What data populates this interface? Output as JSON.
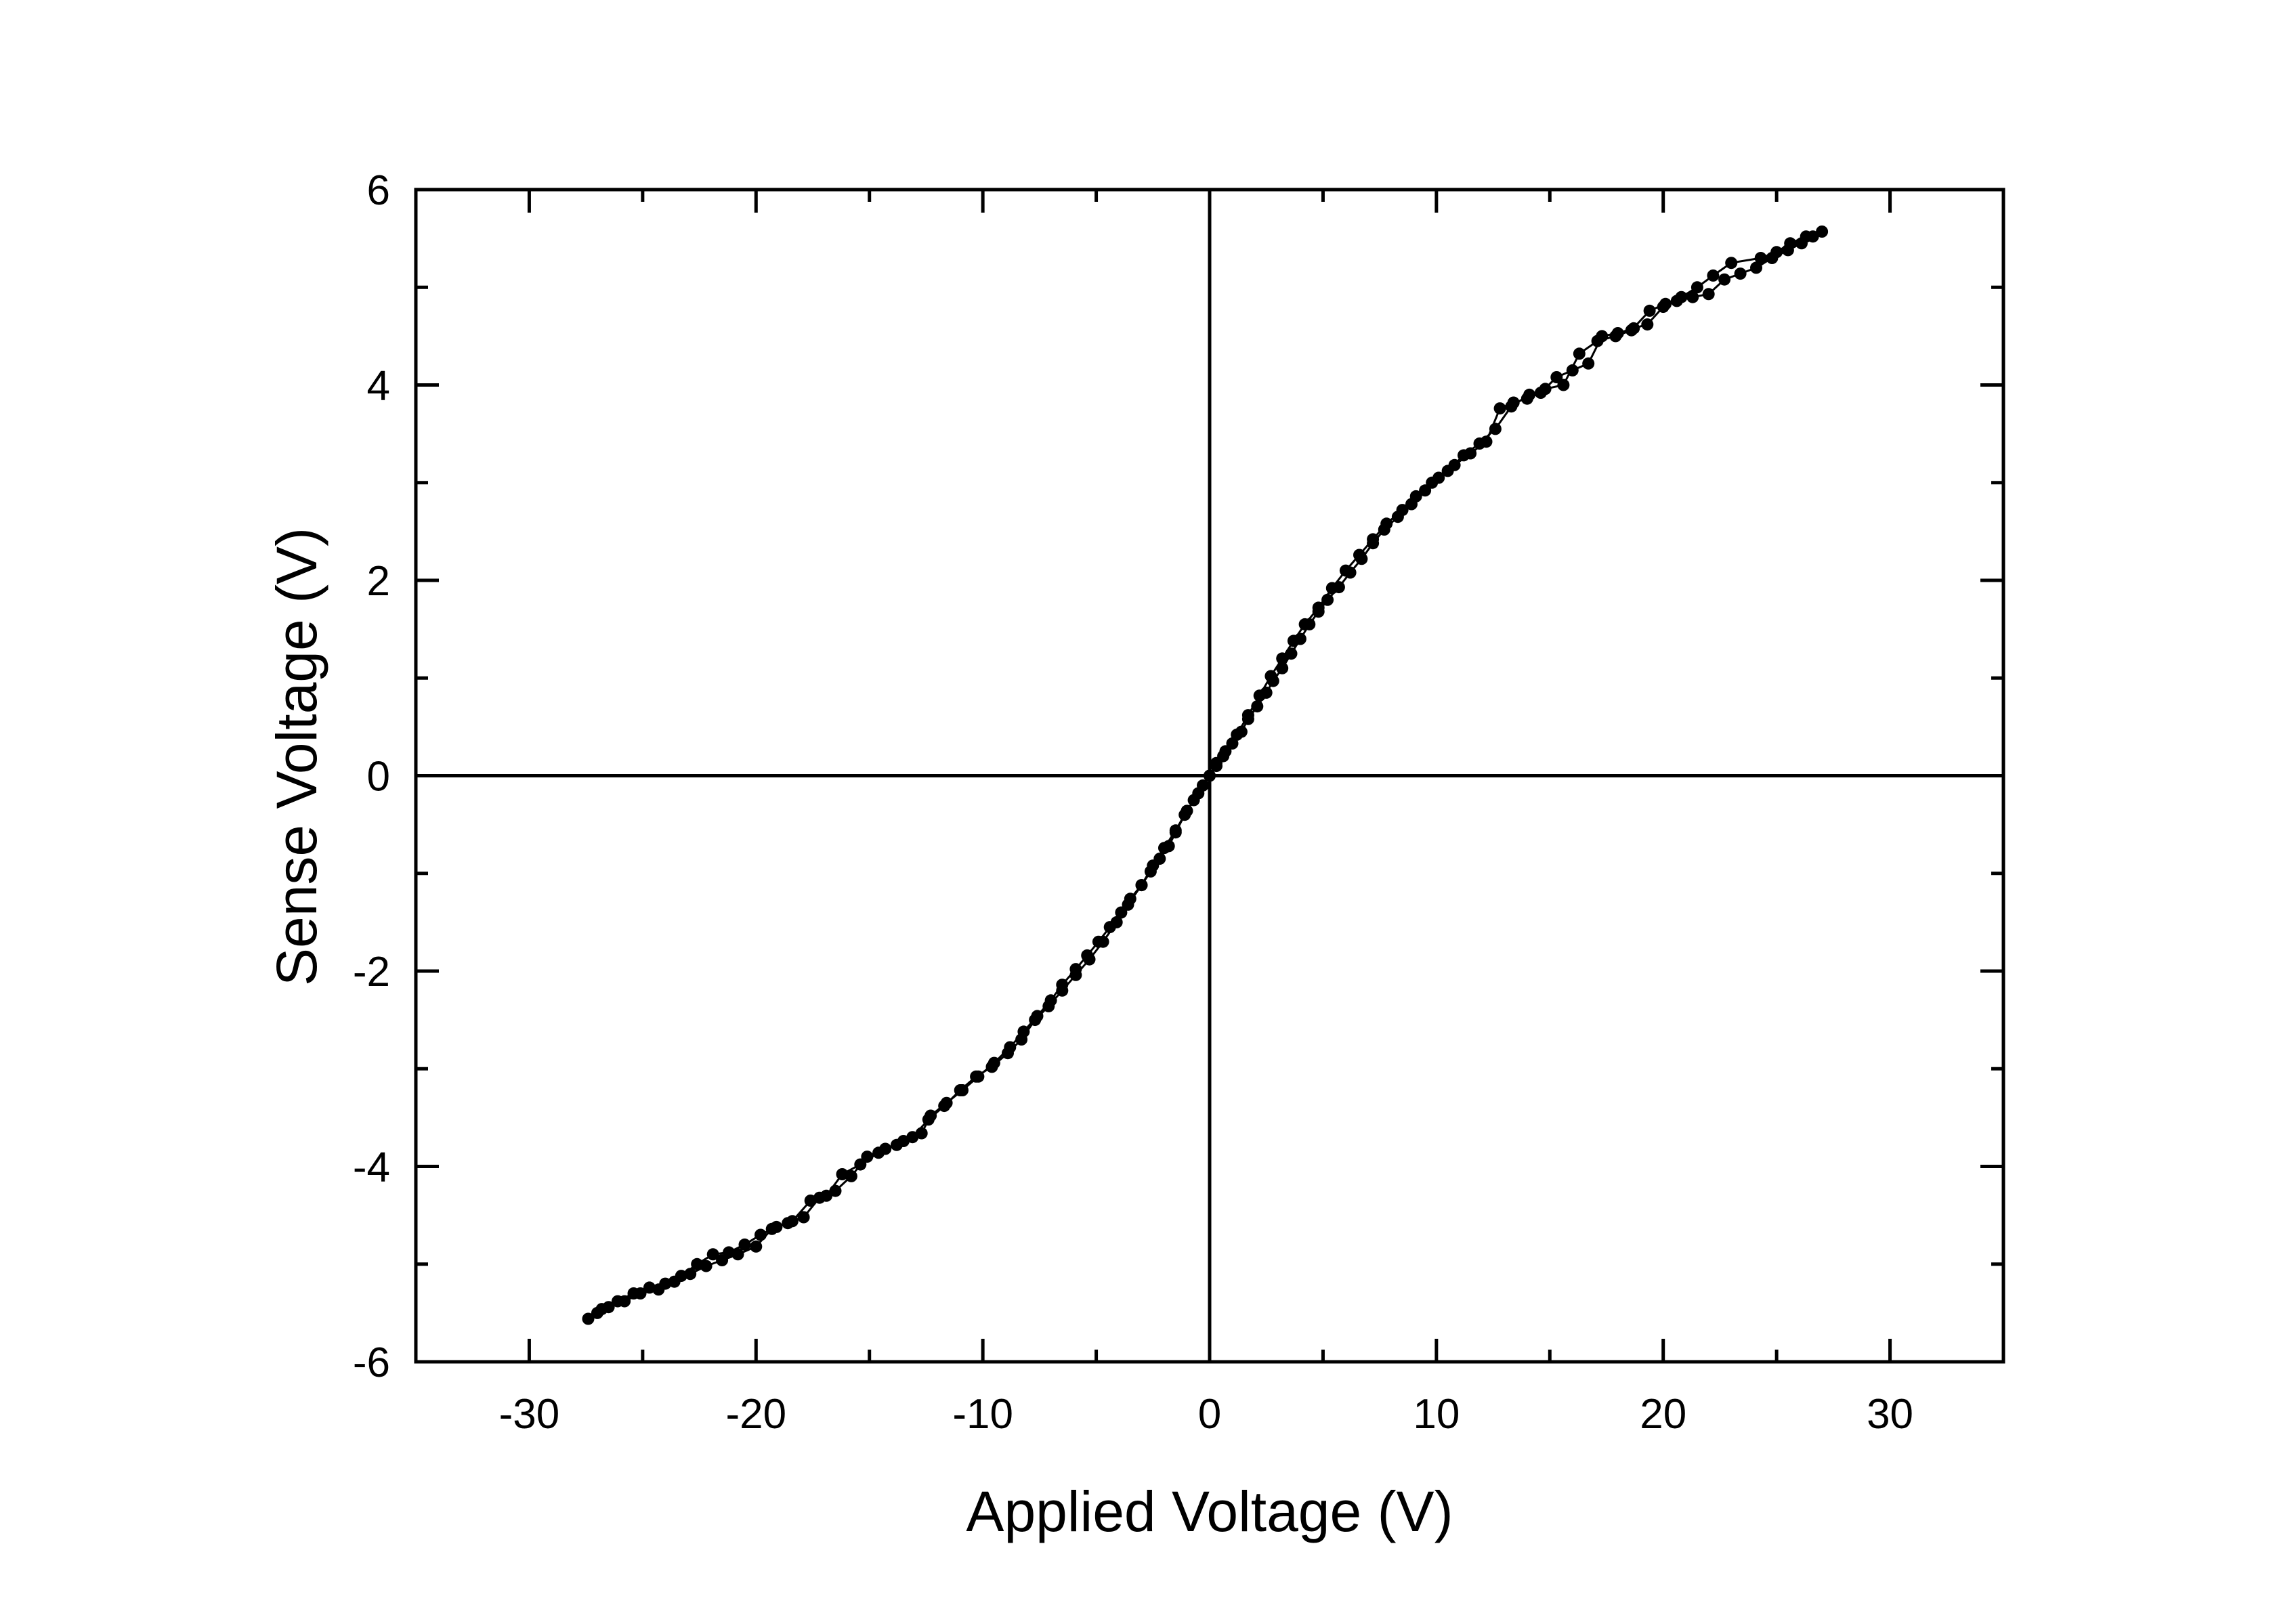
{
  "chart_data": {
    "type": "scatter",
    "xlabel": "Applied Voltage (V)",
    "ylabel": "Sense Voltage (V)",
    "xlim": [
      -35,
      35
    ],
    "ylim": [
      -6,
      6
    ],
    "x_ticks": [
      -30,
      -20,
      -10,
      0,
      10,
      20,
      30
    ],
    "x_tick_labels": [
      "-30",
      "-20",
      "-10",
      "0",
      "10",
      "20",
      "30"
    ],
    "y_ticks": [
      -6,
      -4,
      -2,
      0,
      2,
      4,
      6
    ],
    "y_tick_labels": [
      "-6",
      "-4",
      "-2",
      "0",
      "2",
      "4",
      "6"
    ],
    "grid": false,
    "zero_lines": true,
    "colors": {
      "series": "#000000",
      "axes": "#000000"
    },
    "series": [
      {
        "marker": "circle",
        "line": true,
        "points": [
          [
            0,
            0
          ],
          [
            0.3,
            0.13
          ],
          [
            0.6,
            0.2
          ],
          [
            1.0,
            0.33
          ],
          [
            1.4,
            0.45
          ],
          [
            1.7,
            0.58
          ],
          [
            2.1,
            0.71
          ],
          [
            2.5,
            0.85
          ],
          [
            2.8,
            0.97
          ],
          [
            3.2,
            1.1
          ],
          [
            3.6,
            1.25
          ],
          [
            4.0,
            1.4
          ],
          [
            4.4,
            1.55
          ],
          [
            4.8,
            1.68
          ],
          [
            5.2,
            1.8
          ],
          [
            5.7,
            1.93
          ],
          [
            6.2,
            2.08
          ],
          [
            6.7,
            2.22
          ],
          [
            7.2,
            2.38
          ],
          [
            7.7,
            2.52
          ],
          [
            8.3,
            2.65
          ],
          [
            8.9,
            2.78
          ],
          [
            9.5,
            2.92
          ],
          [
            10.1,
            3.05
          ],
          [
            10.8,
            3.18
          ],
          [
            11.5,
            3.3
          ],
          [
            12.2,
            3.42
          ],
          [
            12.8,
            3.76
          ],
          [
            13.4,
            3.82
          ],
          [
            14.0,
            3.86
          ],
          [
            14.6,
            3.92
          ],
          [
            15.3,
            4.08
          ],
          [
            16.0,
            4.15
          ],
          [
            16.7,
            4.22
          ],
          [
            17.3,
            4.5
          ],
          [
            18.0,
            4.53
          ],
          [
            18.7,
            4.58
          ],
          [
            19.3,
            4.62
          ],
          [
            20.0,
            4.8
          ],
          [
            20.6,
            4.86
          ],
          [
            21.3,
            4.9
          ],
          [
            22.0,
            4.93
          ],
          [
            22.7,
            5.08
          ],
          [
            23.4,
            5.14
          ],
          [
            24.1,
            5.2
          ],
          [
            24.8,
            5.3
          ],
          [
            25.5,
            5.38
          ],
          [
            26.1,
            5.45
          ],
          [
            26.6,
            5.52
          ],
          [
            27.0,
            5.57
          ],
          [
            26.3,
            5.52
          ],
          [
            25.6,
            5.45
          ],
          [
            25.0,
            5.36
          ],
          [
            24.3,
            5.3
          ],
          [
            23.0,
            5.25
          ],
          [
            22.2,
            5.12
          ],
          [
            21.5,
            5.0
          ],
          [
            20.8,
            4.9
          ],
          [
            20.1,
            4.83
          ],
          [
            19.4,
            4.76
          ],
          [
            18.6,
            4.56
          ],
          [
            17.9,
            4.5
          ],
          [
            17.1,
            4.45
          ],
          [
            16.3,
            4.32
          ],
          [
            15.6,
            4.0
          ],
          [
            14.8,
            3.96
          ],
          [
            14.1,
            3.9
          ],
          [
            13.3,
            3.78
          ],
          [
            12.6,
            3.55
          ],
          [
            11.9,
            3.4
          ],
          [
            11.2,
            3.28
          ],
          [
            10.5,
            3.12
          ],
          [
            9.8,
            3.0
          ],
          [
            9.1,
            2.86
          ],
          [
            8.5,
            2.72
          ],
          [
            7.8,
            2.58
          ],
          [
            7.2,
            2.42
          ],
          [
            6.6,
            2.26
          ],
          [
            6.0,
            2.1
          ],
          [
            5.4,
            1.92
          ],
          [
            4.8,
            1.72
          ],
          [
            4.2,
            1.55
          ],
          [
            3.7,
            1.38
          ],
          [
            3.2,
            1.2
          ],
          [
            2.7,
            1.02
          ],
          [
            2.2,
            0.82
          ],
          [
            1.7,
            0.62
          ],
          [
            1.2,
            0.42
          ],
          [
            0.7,
            0.25
          ],
          [
            0.3,
            0.1
          ],
          [
            -0.3,
            -0.1
          ],
          [
            -0.7,
            -0.25
          ],
          [
            -1.1,
            -0.4
          ],
          [
            -1.5,
            -0.58
          ],
          [
            -1.8,
            -0.72
          ],
          [
            -2.2,
            -0.85
          ],
          [
            -2.6,
            -0.98
          ],
          [
            -3.0,
            -1.12
          ],
          [
            -3.5,
            -1.26
          ],
          [
            -3.9,
            -1.4
          ],
          [
            -4.4,
            -1.55
          ],
          [
            -4.9,
            -1.7
          ],
          [
            -5.4,
            -1.84
          ],
          [
            -5.9,
            -1.98
          ],
          [
            -6.5,
            -2.14
          ],
          [
            -7.0,
            -2.3
          ],
          [
            -7.6,
            -2.46
          ],
          [
            -8.2,
            -2.62
          ],
          [
            -8.8,
            -2.78
          ],
          [
            -9.5,
            -2.94
          ],
          [
            -10.2,
            -3.08
          ],
          [
            -10.9,
            -3.22
          ],
          [
            -11.6,
            -3.35
          ],
          [
            -12.3,
            -3.48
          ],
          [
            -12.7,
            -3.66
          ],
          [
            -13.5,
            -3.74
          ],
          [
            -14.3,
            -3.82
          ],
          [
            -15.1,
            -3.9
          ],
          [
            -15.8,
            -4.1
          ],
          [
            -16.5,
            -4.25
          ],
          [
            -17.2,
            -4.32
          ],
          [
            -17.9,
            -4.52
          ],
          [
            -18.6,
            -4.58
          ],
          [
            -19.3,
            -4.64
          ],
          [
            -20.0,
            -4.82
          ],
          [
            -20.8,
            -4.9
          ],
          [
            -21.5,
            -4.96
          ],
          [
            -22.2,
            -5.02
          ],
          [
            -22.9,
            -5.1
          ],
          [
            -23.6,
            -5.18
          ],
          [
            -24.3,
            -5.26
          ],
          [
            -25.1,
            -5.3
          ],
          [
            -25.8,
            -5.38
          ],
          [
            -26.5,
            -5.44
          ],
          [
            -27.0,
            -5.5
          ],
          [
            -27.4,
            -5.56
          ],
          [
            -26.8,
            -5.46
          ],
          [
            -26.1,
            -5.38
          ],
          [
            -25.4,
            -5.3
          ],
          [
            -24.7,
            -5.24
          ],
          [
            -24.0,
            -5.2
          ],
          [
            -23.3,
            -5.12
          ],
          [
            -22.6,
            -5.0
          ],
          [
            -21.9,
            -4.9
          ],
          [
            -21.2,
            -4.88
          ],
          [
            -20.5,
            -4.8
          ],
          [
            -19.8,
            -4.7
          ],
          [
            -19.1,
            -4.62
          ],
          [
            -18.4,
            -4.56
          ],
          [
            -17.6,
            -4.35
          ],
          [
            -16.9,
            -4.3
          ],
          [
            -16.2,
            -4.08
          ],
          [
            -15.4,
            -3.98
          ],
          [
            -14.6,
            -3.86
          ],
          [
            -13.8,
            -3.78
          ],
          [
            -13.1,
            -3.7
          ],
          [
            -12.4,
            -3.52
          ],
          [
            -11.7,
            -3.38
          ],
          [
            -11.0,
            -3.22
          ],
          [
            -10.3,
            -3.08
          ],
          [
            -9.6,
            -2.98
          ],
          [
            -8.9,
            -2.84
          ],
          [
            -8.3,
            -2.7
          ],
          [
            -7.7,
            -2.5
          ],
          [
            -7.1,
            -2.36
          ],
          [
            -6.5,
            -2.2
          ],
          [
            -5.9,
            -2.04
          ],
          [
            -5.3,
            -1.88
          ],
          [
            -4.7,
            -1.7
          ],
          [
            -4.1,
            -1.5
          ],
          [
            -3.6,
            -1.32
          ],
          [
            -3.0,
            -1.12
          ],
          [
            -2.5,
            -0.92
          ],
          [
            -2.0,
            -0.74
          ],
          [
            -1.5,
            -0.56
          ],
          [
            -1.0,
            -0.36
          ],
          [
            -0.5,
            -0.18
          ],
          [
            0,
            0
          ]
        ]
      }
    ]
  }
}
